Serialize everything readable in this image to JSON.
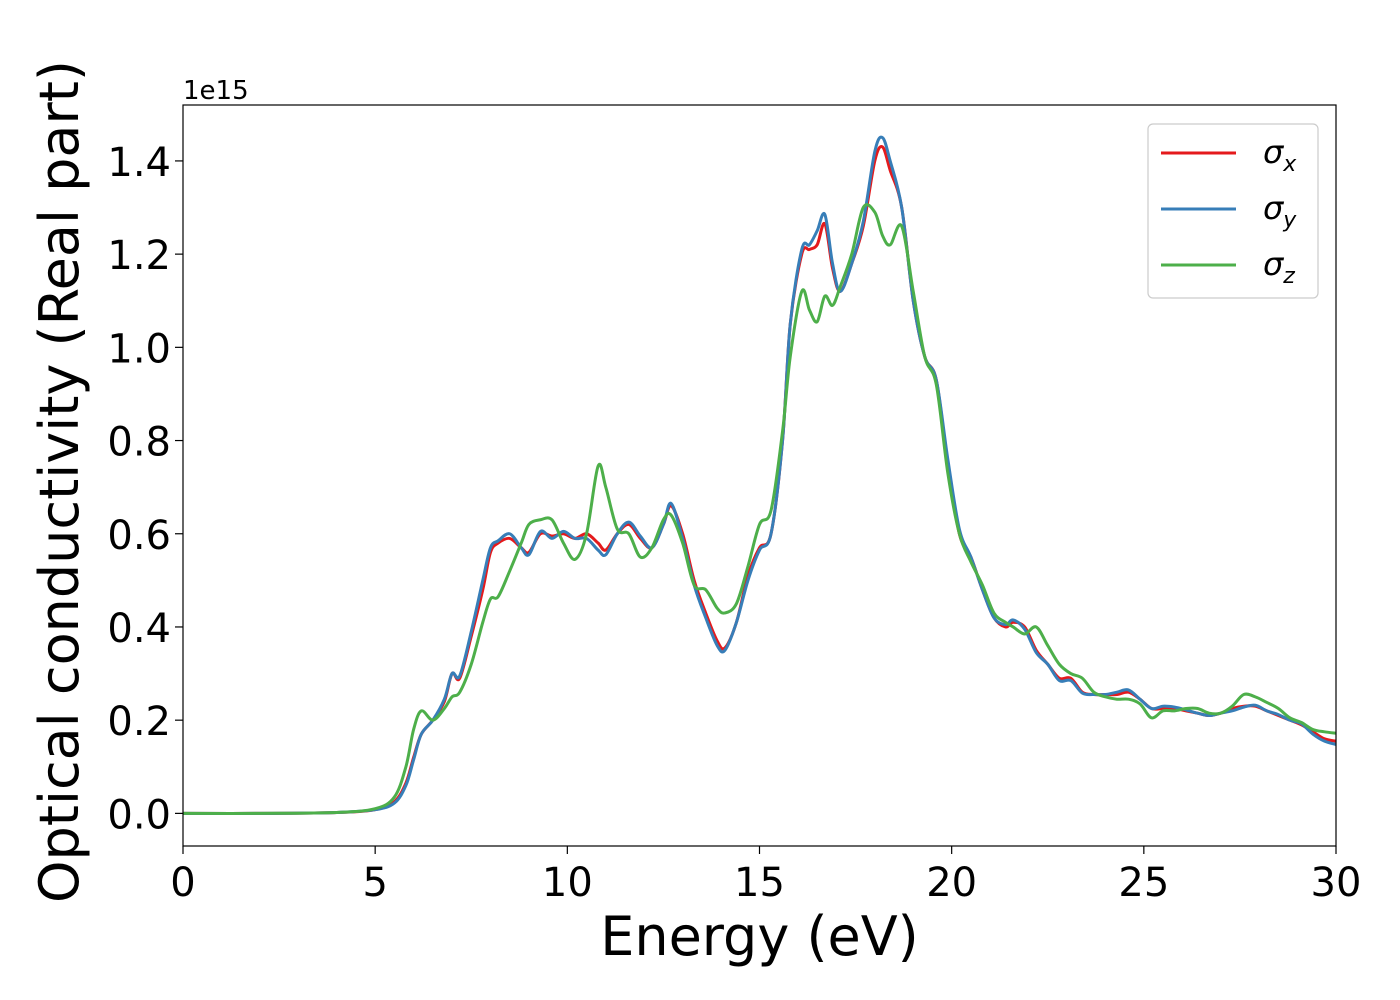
{
  "chart_data": {
    "type": "line",
    "title": "",
    "xlabel": "Energy (eV)",
    "ylabel": "Optical conductivity (Real part)",
    "y_offset_text": "1e15",
    "xlim": [
      0,
      30
    ],
    "ylim": [
      -0.07,
      1.52
    ],
    "x_ticks": [
      0,
      5,
      10,
      15,
      20,
      25,
      30
    ],
    "x_tick_labels": [
      "0",
      "5",
      "10",
      "15",
      "20",
      "25",
      "30"
    ],
    "y_ticks": [
      0.0,
      0.2,
      0.4,
      0.6,
      0.8,
      1.0,
      1.2,
      1.4
    ],
    "y_tick_labels": [
      "0.0",
      "0.2",
      "0.4",
      "0.6",
      "0.8",
      "1.0",
      "1.2",
      "1.4"
    ],
    "grid": false,
    "legend_position": "top-right",
    "series": [
      {
        "name": "σx",
        "legend_base": "σ",
        "legend_sub": "x",
        "color": "#e41a1c",
        "x": [
          0,
          2,
          4,
          5,
          5.5,
          5.8,
          6.0,
          6.2,
          6.5,
          6.8,
          7.0,
          7.2,
          7.5,
          7.8,
          8.0,
          8.2,
          8.5,
          8.8,
          9.0,
          9.3,
          9.6,
          9.9,
          10.2,
          10.5,
          10.8,
          11.0,
          11.3,
          11.6,
          11.9,
          12.2,
          12.5,
          12.7,
          13.0,
          13.3,
          13.6,
          13.9,
          14.1,
          14.4,
          14.7,
          15.0,
          15.3,
          15.6,
          15.8,
          16.1,
          16.3,
          16.5,
          16.7,
          16.9,
          17.1,
          17.4,
          17.7,
          18.0,
          18.2,
          18.4,
          18.7,
          19.0,
          19.3,
          19.6,
          19.9,
          20.2,
          20.5,
          20.8,
          21.1,
          21.4,
          21.6,
          21.9,
          22.2,
          22.5,
          22.8,
          23.1,
          23.4,
          23.7,
          24.0,
          24.3,
          24.6,
          24.9,
          25.2,
          25.5,
          25.8,
          26.1,
          26.4,
          26.7,
          27.0,
          27.3,
          27.6,
          27.9,
          28.2,
          28.5,
          28.8,
          29.1,
          29.4,
          29.7,
          30.0
        ],
        "y": [
          0,
          0.0,
          0.002,
          0.008,
          0.025,
          0.065,
          0.12,
          0.17,
          0.2,
          0.24,
          0.3,
          0.29,
          0.38,
          0.48,
          0.56,
          0.58,
          0.59,
          0.57,
          0.56,
          0.6,
          0.595,
          0.6,
          0.59,
          0.6,
          0.58,
          0.565,
          0.6,
          0.62,
          0.59,
          0.57,
          0.62,
          0.66,
          0.6,
          0.5,
          0.43,
          0.37,
          0.355,
          0.41,
          0.51,
          0.57,
          0.6,
          0.8,
          1.05,
          1.2,
          1.21,
          1.22,
          1.265,
          1.17,
          1.12,
          1.18,
          1.26,
          1.4,
          1.43,
          1.38,
          1.3,
          1.1,
          0.98,
          0.93,
          0.75,
          0.6,
          0.55,
          0.48,
          0.42,
          0.4,
          0.41,
          0.4,
          0.35,
          0.32,
          0.29,
          0.29,
          0.26,
          0.255,
          0.255,
          0.255,
          0.26,
          0.245,
          0.225,
          0.225,
          0.225,
          0.22,
          0.215,
          0.21,
          0.215,
          0.225,
          0.23,
          0.23,
          0.22,
          0.21,
          0.2,
          0.19,
          0.175,
          0.16,
          0.155
        ]
      },
      {
        "name": "σy",
        "legend_base": "σ",
        "legend_sub": "y",
        "color": "#377eb8",
        "x": [
          0,
          2,
          4,
          5,
          5.5,
          5.8,
          6.0,
          6.2,
          6.5,
          6.8,
          7.0,
          7.2,
          7.5,
          7.8,
          8.0,
          8.2,
          8.5,
          8.8,
          9.0,
          9.3,
          9.6,
          9.9,
          10.2,
          10.5,
          10.8,
          11.0,
          11.3,
          11.6,
          11.9,
          12.2,
          12.5,
          12.7,
          13.0,
          13.3,
          13.6,
          13.9,
          14.1,
          14.4,
          14.7,
          15.0,
          15.3,
          15.6,
          15.8,
          16.1,
          16.3,
          16.5,
          16.7,
          16.9,
          17.1,
          17.4,
          17.7,
          18.0,
          18.2,
          18.4,
          18.7,
          19.0,
          19.3,
          19.6,
          19.9,
          20.2,
          20.5,
          20.8,
          21.1,
          21.4,
          21.6,
          21.9,
          22.2,
          22.5,
          22.8,
          23.1,
          23.4,
          23.7,
          24.0,
          24.3,
          24.6,
          24.9,
          25.2,
          25.5,
          25.8,
          26.1,
          26.4,
          26.7,
          27.0,
          27.3,
          27.6,
          27.9,
          28.2,
          28.5,
          28.8,
          29.1,
          29.4,
          29.7,
          30.0
        ],
        "y": [
          0,
          0.0,
          0.002,
          0.008,
          0.022,
          0.06,
          0.115,
          0.17,
          0.2,
          0.245,
          0.3,
          0.295,
          0.39,
          0.5,
          0.57,
          0.585,
          0.6,
          0.57,
          0.555,
          0.605,
          0.59,
          0.605,
          0.59,
          0.59,
          0.565,
          0.555,
          0.6,
          0.625,
          0.595,
          0.57,
          0.62,
          0.665,
          0.59,
          0.49,
          0.42,
          0.36,
          0.35,
          0.41,
          0.5,
          0.565,
          0.6,
          0.8,
          1.05,
          1.21,
          1.22,
          1.25,
          1.285,
          1.18,
          1.12,
          1.18,
          1.27,
          1.42,
          1.45,
          1.4,
          1.3,
          1.1,
          0.98,
          0.93,
          0.76,
          0.61,
          0.55,
          0.48,
          0.42,
          0.405,
          0.415,
          0.395,
          0.345,
          0.32,
          0.285,
          0.285,
          0.258,
          0.255,
          0.255,
          0.26,
          0.265,
          0.245,
          0.225,
          0.23,
          0.228,
          0.222,
          0.215,
          0.21,
          0.215,
          0.22,
          0.228,
          0.232,
          0.22,
          0.212,
          0.2,
          0.192,
          0.17,
          0.155,
          0.148
        ]
      },
      {
        "name": "σz",
        "legend_base": "σ",
        "legend_sub": "z",
        "color": "#4daf4a",
        "x": [
          0,
          2,
          4,
          5,
          5.5,
          5.8,
          6.0,
          6.2,
          6.5,
          6.8,
          7.0,
          7.2,
          7.5,
          7.8,
          8.0,
          8.2,
          8.5,
          8.8,
          9.0,
          9.3,
          9.6,
          9.9,
          10.2,
          10.5,
          10.8,
          11.0,
          11.3,
          11.6,
          11.9,
          12.2,
          12.5,
          12.7,
          13.0,
          13.3,
          13.6,
          13.9,
          14.1,
          14.4,
          14.7,
          15.0,
          15.3,
          15.6,
          15.8,
          16.1,
          16.3,
          16.5,
          16.7,
          16.9,
          17.1,
          17.4,
          17.7,
          18.0,
          18.2,
          18.4,
          18.7,
          19.0,
          19.3,
          19.6,
          19.9,
          20.2,
          20.5,
          20.8,
          21.1,
          21.4,
          21.6,
          21.9,
          22.2,
          22.5,
          22.8,
          23.1,
          23.4,
          23.7,
          24.0,
          24.3,
          24.6,
          24.9,
          25.2,
          25.5,
          25.8,
          26.1,
          26.4,
          26.7,
          27.0,
          27.3,
          27.6,
          27.9,
          28.2,
          28.5,
          28.8,
          29.1,
          29.4,
          29.7,
          30.0
        ],
        "y": [
          0,
          0.0,
          0.002,
          0.01,
          0.035,
          0.1,
          0.18,
          0.22,
          0.2,
          0.225,
          0.25,
          0.26,
          0.32,
          0.41,
          0.46,
          0.465,
          0.52,
          0.58,
          0.62,
          0.63,
          0.63,
          0.58,
          0.545,
          0.6,
          0.745,
          0.7,
          0.61,
          0.6,
          0.55,
          0.57,
          0.63,
          0.64,
          0.58,
          0.49,
          0.48,
          0.44,
          0.43,
          0.45,
          0.53,
          0.62,
          0.65,
          0.82,
          0.98,
          1.12,
          1.08,
          1.055,
          1.11,
          1.09,
          1.13,
          1.2,
          1.3,
          1.29,
          1.24,
          1.22,
          1.26,
          1.12,
          0.98,
          0.92,
          0.73,
          0.6,
          0.54,
          0.49,
          0.43,
          0.41,
          0.4,
          0.385,
          0.4,
          0.36,
          0.32,
          0.3,
          0.29,
          0.26,
          0.25,
          0.245,
          0.245,
          0.235,
          0.205,
          0.22,
          0.22,
          0.225,
          0.225,
          0.215,
          0.215,
          0.23,
          0.255,
          0.25,
          0.238,
          0.225,
          0.205,
          0.195,
          0.18,
          0.175,
          0.172
        ]
      }
    ]
  }
}
